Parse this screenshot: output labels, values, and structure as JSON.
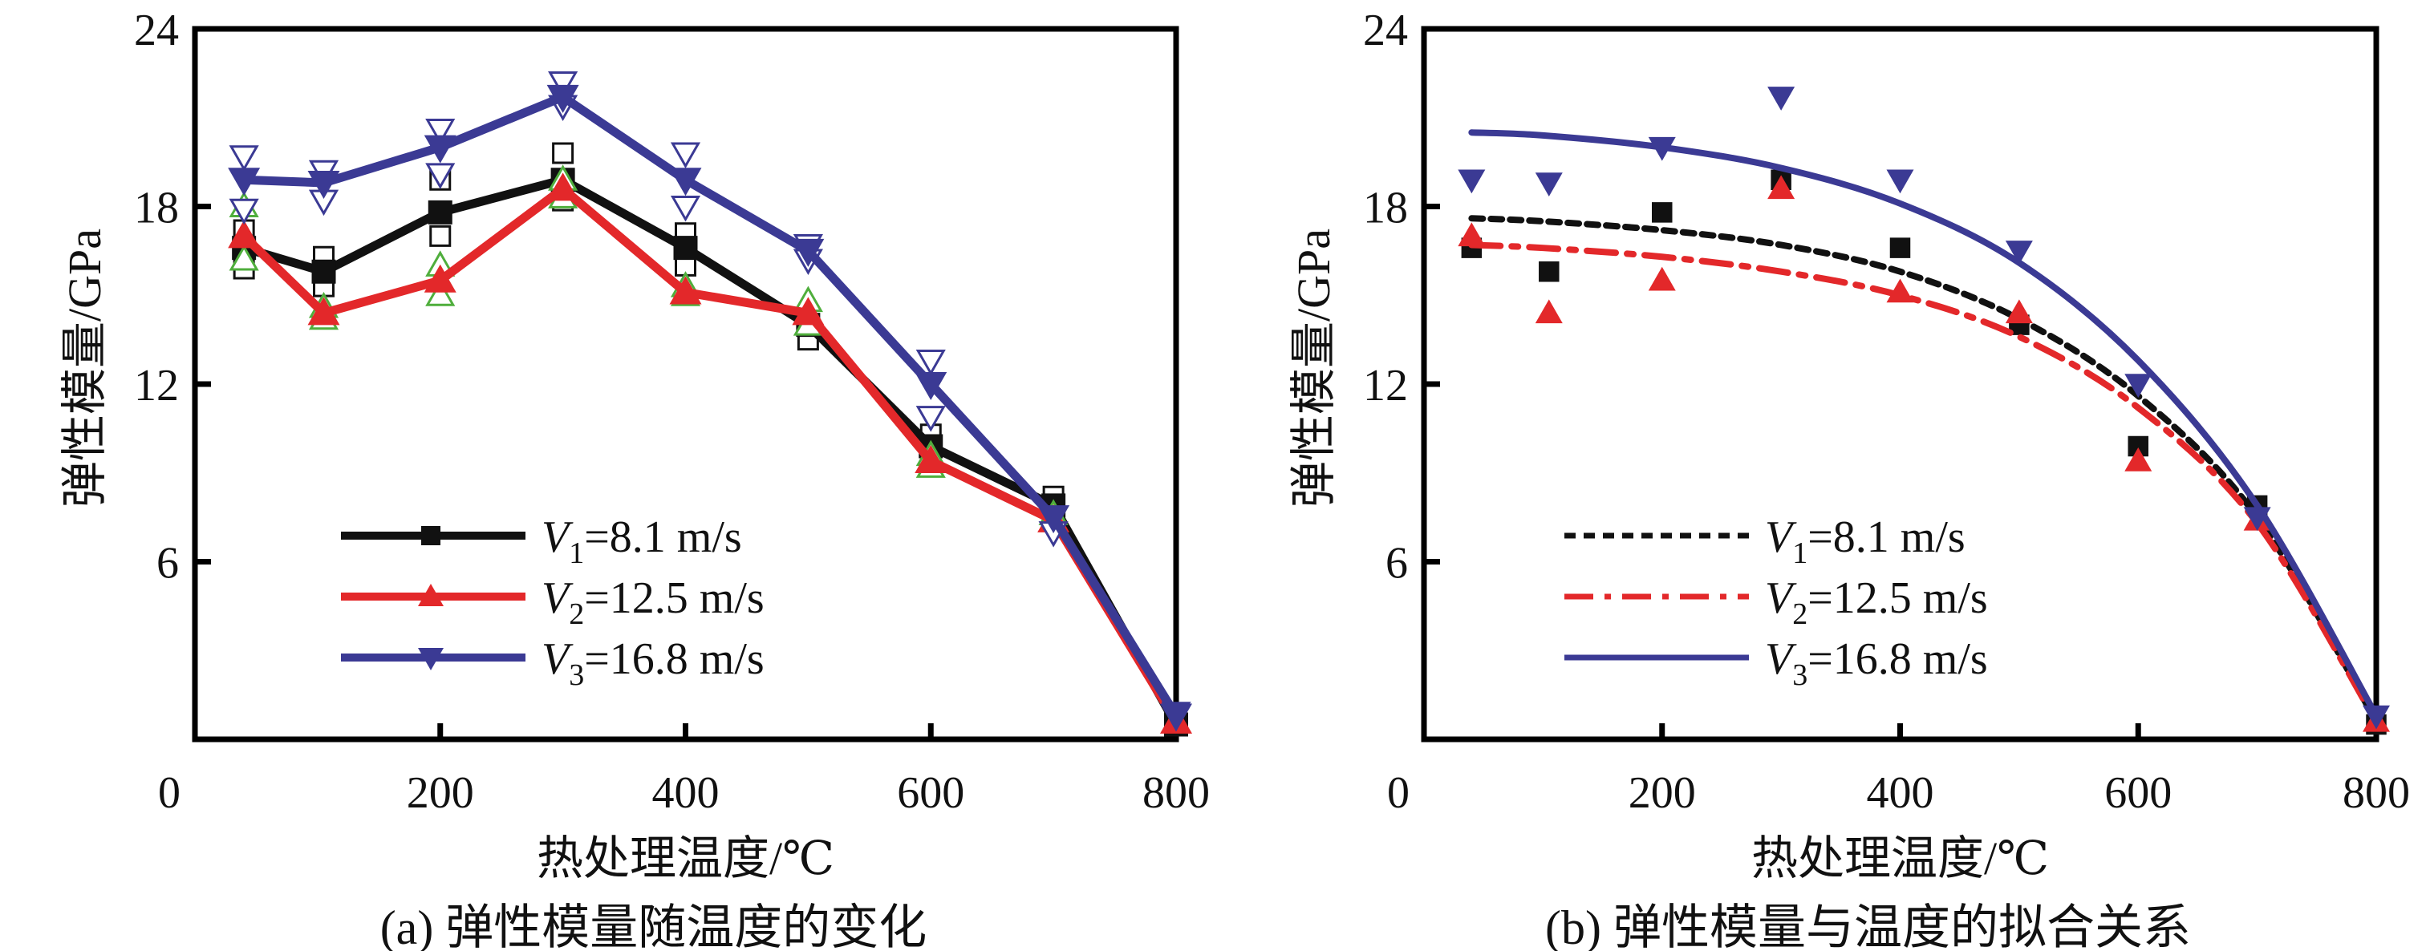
{
  "chart_data": [
    {
      "id": "a",
      "type": "line",
      "caption": "(a) 弹性模量随温度的变化",
      "xlabel": "热处理温度/℃",
      "ylabel": "弹性模量/GPa",
      "xlim": [
        0,
        800
      ],
      "ylim": [
        0,
        24
      ],
      "xticks": [
        0,
        200,
        400,
        600,
        800
      ],
      "yticks": [
        6,
        12,
        18,
        24
      ],
      "x": [
        40,
        105,
        200,
        300,
        400,
        500,
        600,
        700,
        800
      ],
      "grid": false,
      "legend_position": "lower-left",
      "series": [
        {
          "name": "V1=8.1 m/s",
          "var": "V",
          "sub": "1",
          "rest": "=8.1 m/s",
          "color": "#111111",
          "marker": "square",
          "values": [
            16.6,
            15.8,
            17.8,
            18.9,
            16.6,
            14.0,
            9.9,
            7.9,
            0.5
          ],
          "replicates": [
            [
              17.2,
              15.9
            ],
            [
              16.3,
              15.3
            ],
            [
              18.9,
              17.0
            ],
            [
              19.8,
              18.2
            ],
            [
              17.1,
              16.0
            ],
            [
              13.5
            ],
            [
              10.3
            ],
            [
              8.2
            ],
            [
              0.5
            ]
          ],
          "replicate_color": "#111111",
          "replicate_marker": "square-open"
        },
        {
          "name": "V2=12.5 m/s",
          "var": "V",
          "sub": "2",
          "rest": "=12.5 m/s",
          "color": "#e3282a",
          "marker": "triangle-up",
          "values": [
            17.0,
            14.4,
            15.5,
            18.6,
            15.1,
            14.4,
            9.4,
            7.4,
            0.6
          ],
          "replicates": [
            [
              18.0,
              16.2
            ],
            [
              14.6,
              14.2
            ],
            [
              16.0,
              15.0
            ],
            [
              18.9,
              18.3
            ],
            [
              15.3,
              15.0
            ],
            [
              14.8,
              14.0
            ],
            [
              9.6,
              9.2
            ],
            [
              7.6
            ],
            [
              0.6
            ]
          ],
          "replicate_color": "#4fae3c",
          "replicate_marker": "triangle-up-open"
        },
        {
          "name": "V3=16.8 m/s",
          "var": "V",
          "sub": "3",
          "rest": "=16.8 m/s",
          "color": "#3b3a94",
          "marker": "triangle-down",
          "values": [
            18.9,
            18.8,
            20.0,
            21.7,
            18.9,
            16.5,
            12.0,
            7.5,
            0.8
          ],
          "replicates": [
            [
              19.7,
              17.9
            ],
            [
              19.2,
              18.2
            ],
            [
              20.6,
              19.1
            ],
            [
              22.2,
              21.4
            ],
            [
              19.8,
              18.0
            ],
            [
              16.7,
              16.2
            ],
            [
              12.8,
              10.9
            ],
            [
              7.0
            ],
            [
              0.9
            ]
          ],
          "replicate_color": "#3b3a94",
          "replicate_marker": "triangle-down-open"
        }
      ]
    },
    {
      "id": "b",
      "type": "scatter",
      "caption": "(b) 弹性模量与温度的拟合关系",
      "xlabel": "热处理温度/℃",
      "ylabel": "弹性模量/GPa",
      "xlim": [
        0,
        800
      ],
      "ylim": [
        0,
        24
      ],
      "xticks": [
        0,
        200,
        400,
        600,
        800
      ],
      "yticks": [
        6,
        12,
        18,
        24
      ],
      "x": [
        40,
        105,
        200,
        300,
        400,
        500,
        600,
        700,
        800
      ],
      "grid": false,
      "legend_position": "lower-left",
      "series": [
        {
          "name": "V1=8.1 m/s",
          "var": "V",
          "sub": "1",
          "rest": "=8.1 m/s",
          "color": "#111111",
          "marker": "square",
          "line_style": "dotted",
          "values": [
            16.6,
            15.8,
            17.8,
            18.9,
            16.6,
            14.0,
            9.9,
            7.9,
            0.5
          ],
          "fit_x": [
            40,
            100,
            200,
            300,
            400,
            500,
            600,
            700,
            800
          ],
          "fit_y": [
            17.6,
            17.5,
            17.2,
            16.7,
            15.8,
            14.2,
            11.6,
            7.5,
            0.6
          ]
        },
        {
          "name": "V2=12.5 m/s",
          "var": "V",
          "sub": "2",
          "rest": "=12.5 m/s",
          "color": "#e3282a",
          "marker": "triangle-up",
          "line_style": "dash-dot",
          "values": [
            17.0,
            14.4,
            15.5,
            18.6,
            15.1,
            14.4,
            9.4,
            7.4,
            0.6
          ],
          "fit_x": [
            40,
            100,
            200,
            300,
            400,
            500,
            600,
            700,
            800
          ],
          "fit_y": [
            16.7,
            16.6,
            16.3,
            15.8,
            15.0,
            13.6,
            11.2,
            7.3,
            0.6
          ]
        },
        {
          "name": "V3=16.8 m/s",
          "var": "V",
          "sub": "3",
          "rest": "=16.8 m/s",
          "color": "#3b3a94",
          "marker": "triangle-down",
          "line_style": "solid",
          "fit_x": [
            40,
            100,
            200,
            300,
            400,
            500,
            600,
            700,
            800
          ],
          "values": [
            18.9,
            18.8,
            20.0,
            21.7,
            18.9,
            16.5,
            12.0,
            7.5,
            0.8
          ],
          "fit_y": [
            20.5,
            20.4,
            20.0,
            19.3,
            18.1,
            16.1,
            12.8,
            7.9,
            0.8
          ]
        }
      ]
    }
  ]
}
